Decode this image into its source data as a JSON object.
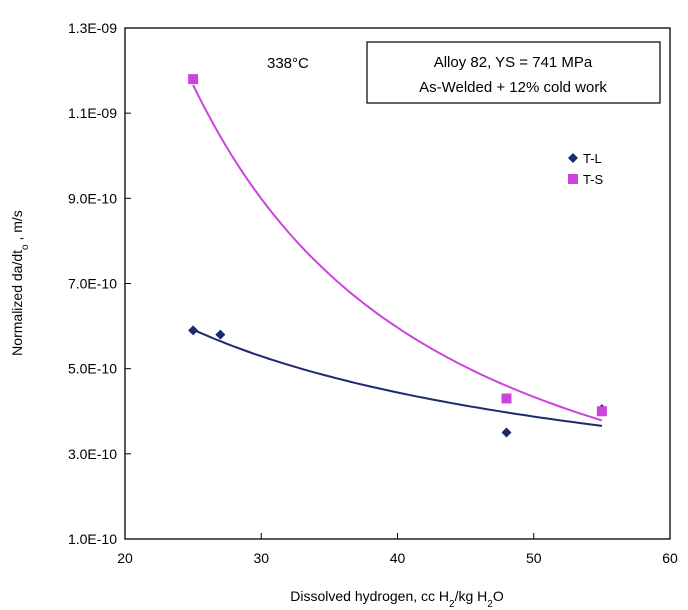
{
  "chart_data": {
    "type": "scatter",
    "xlabel_parts": [
      "Dissolved hydrogen, cc H",
      "2",
      "/kg H",
      "2",
      "O"
    ],
    "ylabel_parts": [
      "Normalized da/dt",
      "o",
      " , m/s"
    ],
    "xlim": [
      20,
      60
    ],
    "ylim": [
      1e-10,
      1.3e-09
    ],
    "x_ticks": [
      20,
      30,
      40,
      50,
      60
    ],
    "x_tick_labels": [
      "20",
      "30",
      "40",
      "50",
      "60"
    ],
    "y_ticks": [
      1e-10,
      3e-10,
      5e-10,
      7e-10,
      9e-10,
      1.1e-09,
      1.3e-09
    ],
    "y_tick_labels": [
      "1.0E-10",
      "3.0E-10",
      "5.0E-10",
      "7.0E-10",
      "9.0E-10",
      "1.1E-09",
      "1.3E-09"
    ],
    "grid": false,
    "legend_position": "upper-right",
    "annotations": {
      "temperature": "338°C",
      "box_line1": "Alloy 82, YS = 741 MPa",
      "box_line2": "As-Welded + 12% cold work"
    },
    "series": [
      {
        "name": "T-L",
        "marker": "diamond",
        "color": "#1f2a6e",
        "x": [
          25,
          27,
          48,
          55
        ],
        "y": [
          5.9e-10,
          5.8e-10,
          3.5e-10,
          4.05e-10
        ],
        "trend": "power"
      },
      {
        "name": "T-S",
        "marker": "square",
        "color": "#cc44dd",
        "x": [
          25,
          48,
          55
        ],
        "y": [
          1.18e-09,
          4.3e-10,
          4e-10
        ],
        "trend": "power"
      }
    ]
  }
}
